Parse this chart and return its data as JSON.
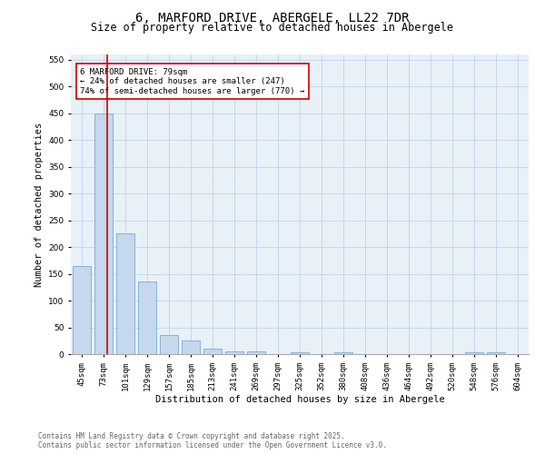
{
  "title": "6, MARFORD DRIVE, ABERGELE, LL22 7DR",
  "subtitle": "Size of property relative to detached houses in Abergele",
  "xlabel": "Distribution of detached houses by size in Abergele",
  "ylabel": "Number of detached properties",
  "bin_labels": [
    "45sqm",
    "73sqm",
    "101sqm",
    "129sqm",
    "157sqm",
    "185sqm",
    "213sqm",
    "241sqm",
    "269sqm",
    "297sqm",
    "325sqm",
    "352sqm",
    "380sqm",
    "408sqm",
    "436sqm",
    "464sqm",
    "492sqm",
    "520sqm",
    "548sqm",
    "576sqm",
    "604sqm"
  ],
  "bar_heights": [
    165,
    450,
    225,
    135,
    35,
    25,
    10,
    5,
    5,
    0,
    3,
    0,
    3,
    0,
    0,
    0,
    0,
    0,
    3,
    3,
    0
  ],
  "bar_color": "#c5d8ee",
  "bar_edge_color": "#7aaad0",
  "grid_color": "#c8d8e8",
  "background_color": "#e8f0f8",
  "vline_x_index": 1.18,
  "vline_color": "#cc0000",
  "annotation_text": "6 MARFORD DRIVE: 79sqm\n← 24% of detached houses are smaller (247)\n74% of semi-detached houses are larger (770) →",
  "annotation_box_color": "#cc0000",
  "annotation_text_color": "#000000",
  "annotation_fontsize": 6.5,
  "ylim": [
    0,
    560
  ],
  "yticks": [
    0,
    50,
    100,
    150,
    200,
    250,
    300,
    350,
    400,
    450,
    500,
    550
  ],
  "footnote": "Contains HM Land Registry data © Crown copyright and database right 2025.\nContains public sector information licensed under the Open Government Licence v3.0.",
  "title_fontsize": 10,
  "subtitle_fontsize": 8.5,
  "xlabel_fontsize": 7.5,
  "ylabel_fontsize": 7.5,
  "tick_fontsize": 6.5,
  "footnote_fontsize": 5.5,
  "footnote_color": "#666666"
}
